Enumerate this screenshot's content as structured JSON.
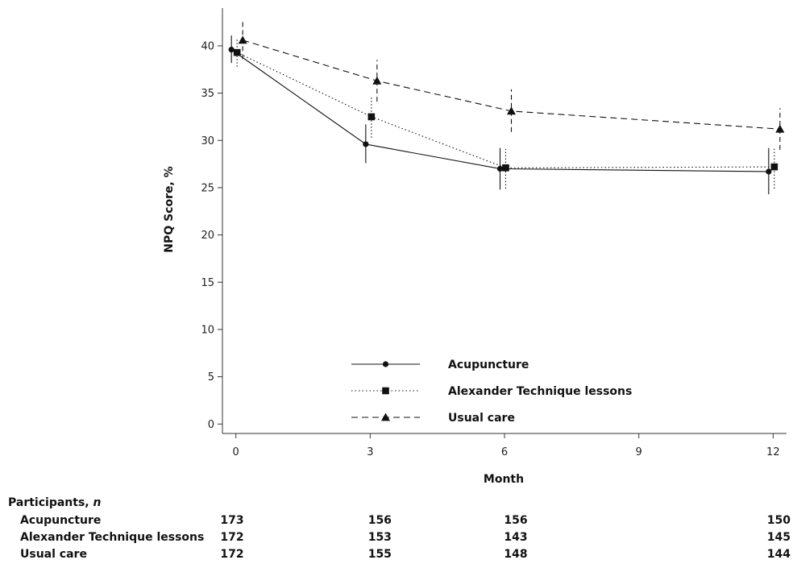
{
  "chart_data": {
    "type": "line",
    "ylabel": "NPQ Score, %",
    "xlabel": "Month",
    "x": [
      0,
      3,
      6,
      12
    ],
    "xticks": [
      0,
      3,
      6,
      9,
      12
    ],
    "yticks": [
      0,
      5,
      10,
      15,
      20,
      25,
      30,
      35,
      40
    ],
    "xlim": [
      -0.3,
      12.3
    ],
    "ylim": [
      -1,
      44
    ],
    "error_bar_kind": "confidence interval",
    "series": [
      {
        "name": "Acupuncture",
        "marker": "circle",
        "line_style": "solid",
        "values": [
          39.6,
          29.6,
          27.0,
          26.7
        ],
        "err_low": [
          38.2,
          27.6,
          24.8,
          24.3
        ],
        "err_high": [
          41.1,
          31.7,
          29.2,
          29.2
        ]
      },
      {
        "name": "Alexander Technique lessons",
        "marker": "square",
        "line_style": "dotted",
        "values": [
          39.3,
          32.5,
          27.1,
          27.2
        ],
        "err_low": [
          37.8,
          30.3,
          24.9,
          24.9
        ],
        "err_high": [
          40.8,
          34.7,
          29.1,
          29.2
        ]
      },
      {
        "name": "Usual care",
        "marker": "triangle",
        "line_style": "dashed",
        "values": [
          40.6,
          36.3,
          33.1,
          31.2
        ],
        "err_low": [
          38.6,
          34.1,
          30.9,
          29.0
        ],
        "err_high": [
          42.6,
          38.5,
          35.4,
          33.4
        ]
      }
    ],
    "legend": {
      "position": "lower-middle",
      "items": [
        "Acupuncture",
        "Alexander Technique lessons",
        "Usual care"
      ]
    }
  },
  "participants_table": {
    "title": "Participants, ",
    "title_italic": "n",
    "rows": [
      {
        "label": "Acupuncture",
        "values": [
          "173",
          "156",
          "156",
          "150"
        ]
      },
      {
        "label": "Alexander Technique lessons",
        "values": [
          "172",
          "153",
          "143",
          "145"
        ]
      },
      {
        "label": "Usual care",
        "values": [
          "172",
          "155",
          "148",
          "144"
        ]
      }
    ]
  }
}
